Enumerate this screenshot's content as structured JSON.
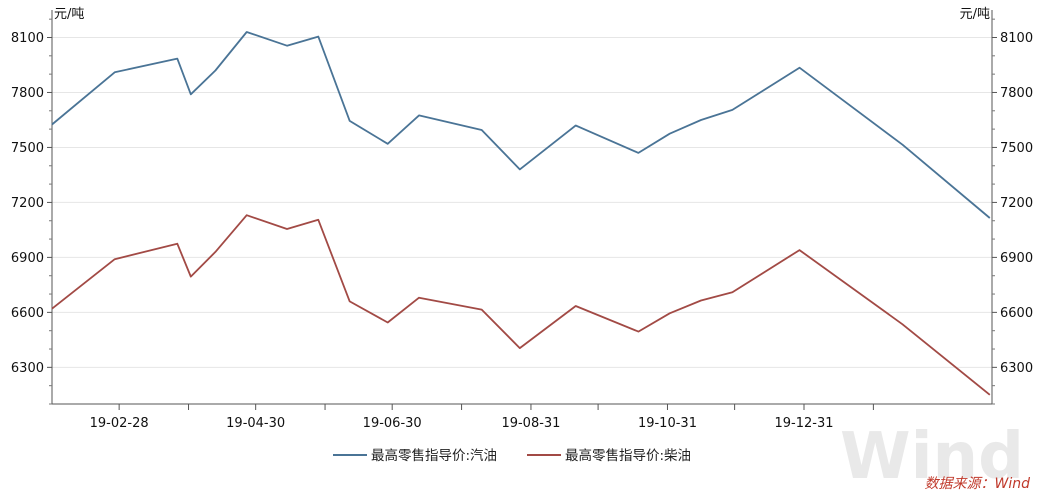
{
  "chart_data": {
    "type": "line",
    "y_unit_left": "元/吨",
    "y_unit_right": "元/吨",
    "ylim": [
      6100,
      8250
    ],
    "y_ticks": [
      6300,
      6600,
      6900,
      7200,
      7500,
      7800,
      8100
    ],
    "y_minor_step": 100,
    "x_range": [
      "2019-01-29",
      "2020-03-24"
    ],
    "x_ticks": [
      {
        "date": "2019-02-28",
        "label": "19-02-28"
      },
      {
        "date": "2019-04-30",
        "label": "19-04-30"
      },
      {
        "date": "2019-06-30",
        "label": "19-06-30"
      },
      {
        "date": "2019-08-31",
        "label": "19-08-31"
      },
      {
        "date": "2019-10-31",
        "label": "19-10-31"
      },
      {
        "date": "2019-12-31",
        "label": "19-12-31"
      }
    ],
    "x_minor_ticks": [
      "2019-03-31",
      "2019-05-31",
      "2019-07-31",
      "2019-09-30",
      "2019-11-30",
      "2020-01-31"
    ],
    "grid": "horizontal",
    "legend_position": "bottom-center",
    "series": [
      {
        "name": "最高零售指导价:汽油",
        "color": "#4a7496",
        "x": [
          "2019-01-29",
          "2019-02-26",
          "2019-03-26",
          "2019-04-01",
          "2019-04-12",
          "2019-04-26",
          "2019-05-14",
          "2019-05-28",
          "2019-06-11",
          "2019-06-28",
          "2019-07-12",
          "2019-08-09",
          "2019-08-26",
          "2019-09-20",
          "2019-10-18",
          "2019-11-01",
          "2019-11-15",
          "2019-11-29",
          "2019-12-29",
          "2020-02-13",
          "2020-03-23"
        ],
        "values": [
          7625,
          7910,
          7985,
          7790,
          7920,
          8130,
          8055,
          8105,
          7645,
          7520,
          7675,
          7595,
          7380,
          7620,
          7470,
          7575,
          7650,
          7705,
          7935,
          7515,
          7115
        ]
      },
      {
        "name": "最高零售指导价:柴油",
        "color": "#a24a45",
        "x": [
          "2019-01-29",
          "2019-02-26",
          "2019-03-26",
          "2019-04-01",
          "2019-04-12",
          "2019-04-26",
          "2019-05-14",
          "2019-05-28",
          "2019-06-11",
          "2019-06-28",
          "2019-07-12",
          "2019-08-09",
          "2019-08-26",
          "2019-09-20",
          "2019-10-18",
          "2019-11-01",
          "2019-11-15",
          "2019-11-29",
          "2019-12-29",
          "2020-02-13",
          "2020-03-23"
        ],
        "values": [
          6620,
          6890,
          6975,
          6795,
          6930,
          7130,
          7055,
          7105,
          6660,
          6545,
          6680,
          6615,
          6405,
          6635,
          6495,
          6595,
          6665,
          6710,
          6940,
          6535,
          6150
        ]
      }
    ],
    "source": "数据来源：Wind",
    "watermark": "Wind"
  }
}
